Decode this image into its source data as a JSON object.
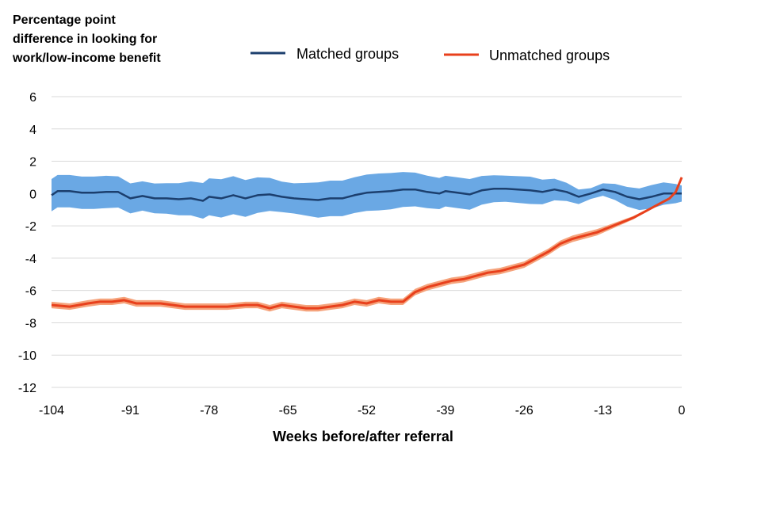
{
  "chart_data": {
    "type": "line",
    "title": "",
    "ylabel_lines": [
      "Percentage point",
      "difference in looking for",
      "work/low-income benefit"
    ],
    "xlabel": "Weeks before/after referral",
    "xlim": [
      -104,
      0
    ],
    "ylim": [
      -12,
      6
    ],
    "x_ticks": [
      -104,
      -91,
      -78,
      -65,
      -52,
      -39,
      -26,
      -13,
      0
    ],
    "y_ticks": [
      6,
      4,
      2,
      0,
      -2,
      -4,
      -6,
      -8,
      -10,
      -12
    ],
    "grid": "horizontal",
    "legend_position": "top",
    "series": [
      {
        "name": "Matched groups",
        "color": "#1c3f6e",
        "band_color": "#6aa8e4",
        "ci_halfwidth": [
          1.0,
          1.0,
          1.0,
          0.9,
          0.95,
          1.1,
          1.2,
          1.1,
          0.9,
          1.1,
          1.1,
          1.15,
          1.05,
          0.95,
          0.95,
          0.8,
          0.85,
          0.6,
          0.3,
          0.6,
          0.75,
          0.5
        ],
        "points": [
          [
            -104,
            -0.1
          ],
          [
            -103,
            0.15
          ],
          [
            -101,
            0.15
          ],
          [
            -99,
            0.05
          ],
          [
            -97,
            0.05
          ],
          [
            -95,
            0.1
          ],
          [
            -93,
            0.1
          ],
          [
            -91,
            -0.3
          ],
          [
            -89,
            -0.15
          ],
          [
            -87,
            -0.3
          ],
          [
            -85,
            -0.3
          ],
          [
            -83,
            -0.35
          ],
          [
            -81,
            -0.3
          ],
          [
            -79,
            -0.45
          ],
          [
            -78,
            -0.2
          ],
          [
            -76,
            -0.3
          ],
          [
            -74,
            -0.1
          ],
          [
            -72,
            -0.3
          ],
          [
            -70,
            -0.1
          ],
          [
            -68,
            -0.05
          ],
          [
            -66,
            -0.2
          ],
          [
            -64,
            -0.3
          ],
          [
            -62,
            -0.35
          ],
          [
            -60,
            -0.4
          ],
          [
            -58,
            -0.3
          ],
          [
            -56,
            -0.3
          ],
          [
            -54,
            -0.1
          ],
          [
            -52,
            0.05
          ],
          [
            -50,
            0.1
          ],
          [
            -48,
            0.15
          ],
          [
            -46,
            0.25
          ],
          [
            -44,
            0.25
          ],
          [
            -42,
            0.1
          ],
          [
            -40,
            0.0
          ],
          [
            -39,
            0.15
          ],
          [
            -37,
            0.05
          ],
          [
            -35,
            -0.05
          ],
          [
            -33,
            0.2
          ],
          [
            -31,
            0.3
          ],
          [
            -29,
            0.3
          ],
          [
            -27,
            0.25
          ],
          [
            -25,
            0.2
          ],
          [
            -23,
            0.1
          ],
          [
            -21,
            0.25
          ],
          [
            -19,
            0.1
          ],
          [
            -17,
            -0.2
          ],
          [
            -15,
            0.0
          ],
          [
            -13,
            0.25
          ],
          [
            -11,
            0.1
          ],
          [
            -9,
            -0.2
          ],
          [
            -7,
            -0.35
          ],
          [
            -5,
            -0.2
          ],
          [
            -3,
            0.0
          ],
          [
            -1,
            0.0
          ],
          [
            0,
            0.0
          ]
        ]
      },
      {
        "name": "Unmatched groups",
        "color": "#e8401c",
        "band_color": "#f5a37c",
        "ci_halfwidth": [
          0.2,
          0.2,
          0.2,
          0.2,
          0.2,
          0.2,
          0.2,
          0.2,
          0.2,
          0.2,
          0.2,
          0.2,
          0.2,
          0.2,
          0.2,
          0.2,
          0.2,
          0.2,
          0.2,
          0.2,
          0.2,
          0.2,
          0.2,
          0.2,
          0.2,
          0.2,
          0.2,
          0.15,
          0.1,
          0.05,
          0.05,
          0.05
        ],
        "points": [
          [
            -104,
            -6.9
          ],
          [
            -101,
            -7.0
          ],
          [
            -98,
            -6.8
          ],
          [
            -96,
            -6.7
          ],
          [
            -94,
            -6.7
          ],
          [
            -92,
            -6.6
          ],
          [
            -90,
            -6.8
          ],
          [
            -88,
            -6.8
          ],
          [
            -86,
            -6.8
          ],
          [
            -84,
            -6.9
          ],
          [
            -82,
            -7.0
          ],
          [
            -80,
            -7.0
          ],
          [
            -78,
            -7.0
          ],
          [
            -75,
            -7.0
          ],
          [
            -72,
            -6.9
          ],
          [
            -70,
            -6.9
          ],
          [
            -68,
            -7.1
          ],
          [
            -66,
            -6.9
          ],
          [
            -64,
            -7.0
          ],
          [
            -62,
            -7.1
          ],
          [
            -60,
            -7.1
          ],
          [
            -58,
            -7.0
          ],
          [
            -56,
            -6.9
          ],
          [
            -54,
            -6.7
          ],
          [
            -52,
            -6.8
          ],
          [
            -50,
            -6.6
          ],
          [
            -48,
            -6.7
          ],
          [
            -46,
            -6.7
          ],
          [
            -44,
            -6.1
          ],
          [
            -42,
            -5.8
          ],
          [
            -40,
            -5.6
          ],
          [
            -38,
            -5.4
          ],
          [
            -36,
            -5.3
          ],
          [
            -34,
            -5.1
          ],
          [
            -32,
            -4.9
          ],
          [
            -30,
            -4.8
          ],
          [
            -28,
            -4.6
          ],
          [
            -26,
            -4.4
          ],
          [
            -24,
            -4.0
          ],
          [
            -22,
            -3.6
          ],
          [
            -20,
            -3.1
          ],
          [
            -18,
            -2.8
          ],
          [
            -16,
            -2.6
          ],
          [
            -14,
            -2.4
          ],
          [
            -12,
            -2.1
          ],
          [
            -10,
            -1.8
          ],
          [
            -8,
            -1.5
          ],
          [
            -6,
            -1.1
          ],
          [
            -4,
            -0.7
          ],
          [
            -2,
            -0.3
          ],
          [
            -1,
            0.1
          ],
          [
            0,
            1.0
          ]
        ]
      }
    ]
  }
}
